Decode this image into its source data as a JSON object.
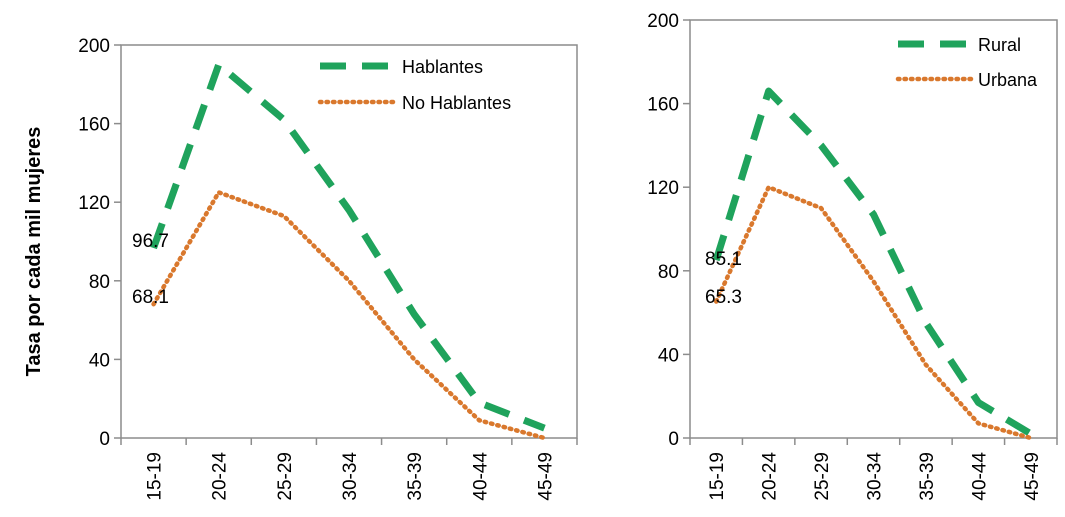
{
  "chart_data": [
    {
      "type": "line",
      "title": "",
      "xlabel": "",
      "ylabel": "Tasa por cada mil mujeres",
      "ylim": [
        0,
        200
      ],
      "yticks": [
        "0",
        "40",
        "80",
        "120",
        "160",
        "200"
      ],
      "categories": [
        "15-19",
        "20-24",
        "25-29",
        "30-34",
        "35-39",
        "40-44",
        "45-49"
      ],
      "legend_position": "top-right",
      "grid": false,
      "series": [
        {
          "name": "Hablantes",
          "color": "#1fa35c",
          "style": "dashed",
          "values": [
            96.7,
            190,
            162,
            116,
            63,
            18,
            5
          ]
        },
        {
          "name": "No Hablantes",
          "color": "#d9782d",
          "style": "dotted",
          "values": [
            68.1,
            125,
            113,
            80,
            40,
            9,
            0
          ]
        }
      ],
      "data_labels": [
        {
          "series": 0,
          "index": 0,
          "text": "96.7"
        },
        {
          "series": 1,
          "index": 0,
          "text": "68.1"
        }
      ]
    },
    {
      "type": "line",
      "title": "",
      "xlabel": "",
      "ylabel": "",
      "ylim": [
        0,
        200
      ],
      "yticks": [
        "0",
        "40",
        "80",
        "120",
        "160",
        "200"
      ],
      "categories": [
        "15-19",
        "20-24",
        "25-29",
        "30-34",
        "35-39",
        "40-44",
        "45-49"
      ],
      "legend_position": "top-right",
      "grid": false,
      "series": [
        {
          "name": "Rural",
          "color": "#1fa35c",
          "style": "dashed",
          "values": [
            85.1,
            166,
            140,
            107,
            55,
            17,
            2
          ]
        },
        {
          "name": "Urbana",
          "color": "#d9782d",
          "style": "dotted",
          "values": [
            65.3,
            120,
            110,
            75,
            35,
            7,
            0
          ]
        }
      ],
      "data_labels": [
        {
          "series": 0,
          "index": 0,
          "text": "85.1"
        },
        {
          "series": 1,
          "index": 0,
          "text": "65.3"
        }
      ]
    }
  ]
}
